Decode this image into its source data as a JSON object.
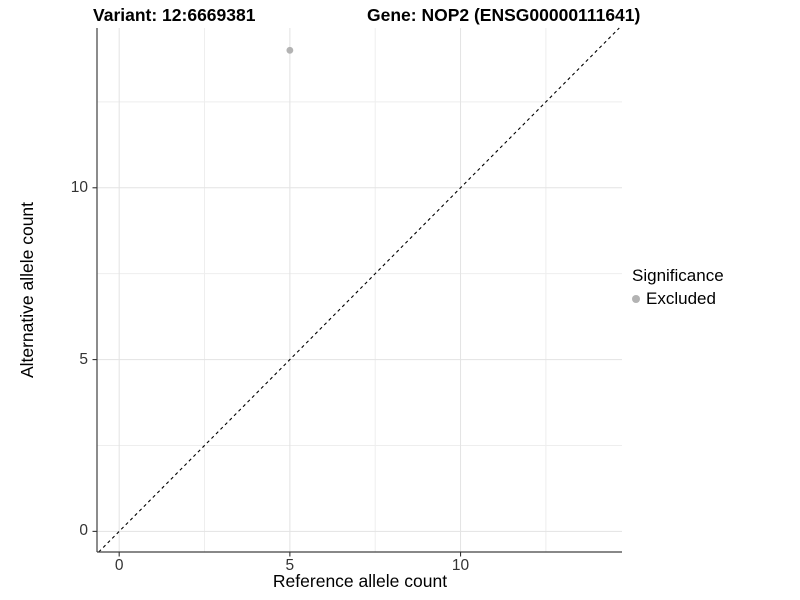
{
  "chart_data": {
    "type": "scatter",
    "title": {
      "left": "Variant: 12:6669381",
      "right": "Gene: NOP2 (ENSG00000111641)"
    },
    "xlabel": "Reference allele count",
    "ylabel": "Alternative allele count",
    "x_axis": {
      "min": -0.65,
      "max": 14.73,
      "major_ticks": [
        0,
        5,
        10
      ],
      "minor_ticks": [
        2.5,
        7.5,
        12.5
      ]
    },
    "y_axis": {
      "min": -0.6,
      "max": 14.65,
      "major_ticks": [
        0,
        5,
        10
      ],
      "minor_ticks": [
        2.5,
        7.5,
        12.5
      ]
    },
    "points": [
      {
        "x": 5,
        "y": 14,
        "series": "Excluded"
      }
    ],
    "reference_line": {
      "type": "identity",
      "style": "dashed",
      "color": "#000000"
    },
    "legend": {
      "title": "Significance",
      "position": "right",
      "entries": [
        {
          "label": "Excluded",
          "color": "#b3b3b3"
        }
      ]
    },
    "grid": {
      "on": true,
      "major_color": "#e3e3e3",
      "minor_color": "#eeeeee"
    },
    "colors": {
      "point": "#b3b3b3",
      "axis_line": "#404040",
      "tick_mark": "#333333"
    }
  }
}
